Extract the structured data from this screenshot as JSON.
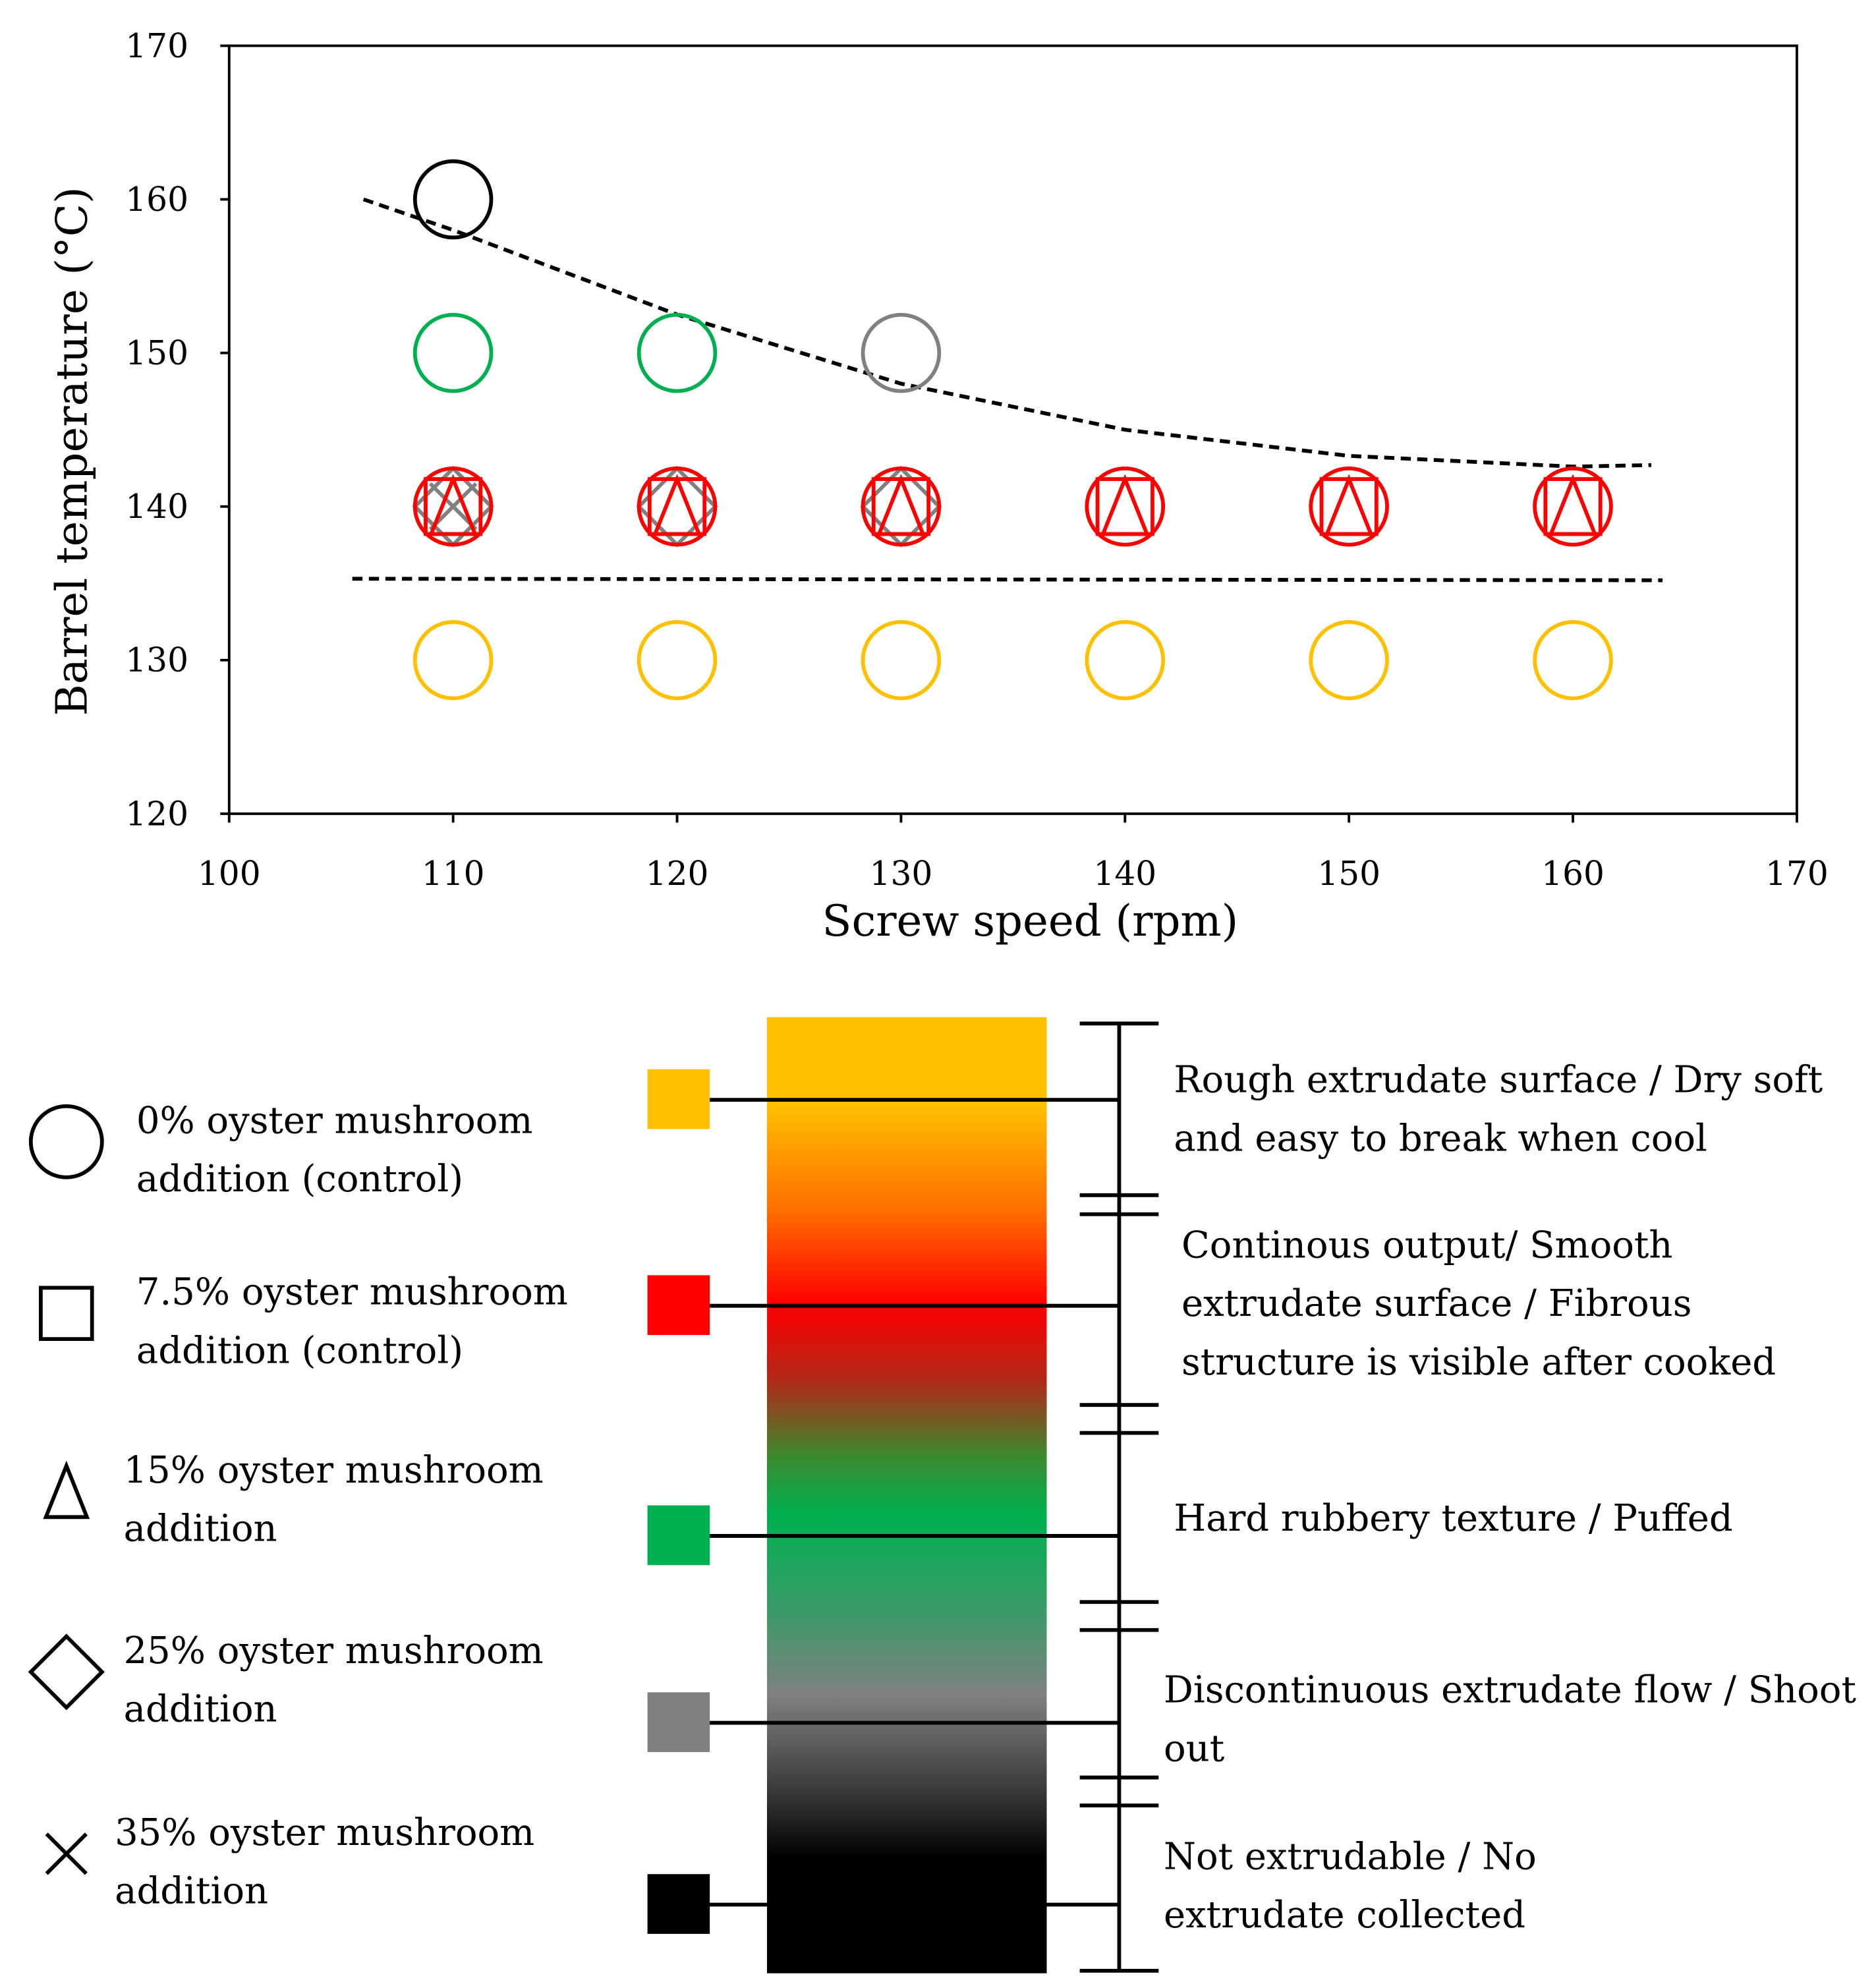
{
  "chart_data": {
    "type": "scatter",
    "xlabel": "Screw speed (rpm)",
    "ylabel": "Barrel temperature (°C)",
    "xlim": [
      100,
      170
    ],
    "ylim": [
      120,
      170
    ],
    "xticks": [
      100,
      110,
      120,
      130,
      140,
      150,
      160,
      170
    ],
    "yticks": [
      120,
      130,
      140,
      150,
      160,
      170
    ],
    "grid": false,
    "points": [
      {
        "x": 110,
        "y": 160,
        "color": "#000000",
        "markers": [
          "circle"
        ]
      },
      {
        "x": 110,
        "y": 150,
        "color": "#00B050",
        "markers": [
          "circle"
        ]
      },
      {
        "x": 120,
        "y": 150,
        "color": "#00B050",
        "markers": [
          "circle"
        ]
      },
      {
        "x": 130,
        "y": 150,
        "color": "#808080",
        "markers": [
          "circle"
        ]
      },
      {
        "x": 110,
        "y": 140,
        "color": "#FF0000",
        "markers": [
          "circle",
          "square",
          "triangle",
          "diamond",
          "cross"
        ]
      },
      {
        "x": 120,
        "y": 140,
        "color": "#FF0000",
        "markers": [
          "circle",
          "square",
          "triangle",
          "diamond"
        ]
      },
      {
        "x": 130,
        "y": 140,
        "color": "#FF0000",
        "markers": [
          "circle",
          "square",
          "triangle",
          "diamond"
        ]
      },
      {
        "x": 140,
        "y": 140,
        "color": "#FF0000",
        "markers": [
          "circle",
          "square",
          "triangle"
        ]
      },
      {
        "x": 150,
        "y": 140,
        "color": "#FF0000",
        "markers": [
          "circle",
          "square",
          "triangle"
        ]
      },
      {
        "x": 160,
        "y": 140,
        "color": "#FF0000",
        "markers": [
          "circle",
          "square",
          "triangle"
        ]
      },
      {
        "x": 110,
        "y": 130,
        "color": "#FFC000",
        "markers": [
          "circle"
        ]
      },
      {
        "x": 120,
        "y": 130,
        "color": "#FFC000",
        "markers": [
          "circle"
        ]
      },
      {
        "x": 130,
        "y": 130,
        "color": "#FFC000",
        "markers": [
          "circle"
        ]
      },
      {
        "x": 140,
        "y": 130,
        "color": "#FFC000",
        "markers": [
          "circle"
        ]
      },
      {
        "x": 150,
        "y": 130,
        "color": "#FFC000",
        "markers": [
          "circle"
        ]
      },
      {
        "x": 160,
        "y": 130,
        "color": "#FFC000",
        "markers": [
          "circle"
        ]
      }
    ],
    "boundaries": [
      {
        "name": "upper",
        "x": [
          106,
          110,
          120,
          130,
          140,
          150,
          160,
          163.5
        ],
        "y": [
          160,
          158,
          152.5,
          148,
          145,
          143.3,
          142.6,
          142.7
        ]
      },
      {
        "name": "lower",
        "x": [
          105.5,
          164
        ],
        "y": [
          135.3,
          135.2
        ]
      }
    ]
  },
  "marker_legend": [
    {
      "marker": "circle",
      "lines": [
        "0% oyster mushroom",
        "addition (control)"
      ]
    },
    {
      "marker": "square",
      "lines": [
        "7.5% oyster mushroom",
        "addition (control)"
      ]
    },
    {
      "marker": "triangle",
      "lines": [
        "15% oyster mushroom",
        "addition"
      ]
    },
    {
      "marker": "diamond",
      "lines": [
        "25% oyster mushroom",
        "addition"
      ]
    },
    {
      "marker": "cross",
      "lines": [
        "35% oyster mushroom",
        "addition"
      ]
    }
  ],
  "color_legend": [
    {
      "color": "#FFC000",
      "lines": [
        "Rough extrudate surface / Dry soft",
        "and easy to break when cool"
      ]
    },
    {
      "color": "#FF0000",
      "lines": [
        "Continous output/ Smooth",
        "extrudate surface / Fibrous",
        "structure is visible after cooked"
      ]
    },
    {
      "color": "#00B050",
      "lines": [
        "Hard rubbery texture / Puffed"
      ]
    },
    {
      "color": "#808080",
      "lines": [
        "Discontinuous extrudate flow / Shoot",
        "out"
      ]
    },
    {
      "color": "#000000",
      "lines": [
        "Not extrudable / No",
        "extrudate collected"
      ]
    }
  ]
}
